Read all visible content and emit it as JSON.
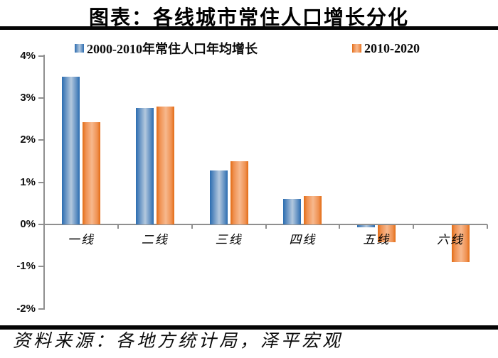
{
  "title": "图表：各线城市常住人口增长分化",
  "source": "资料来源：各地方统计局，泽平宏观",
  "legend": [
    {
      "label": "2000-2010年常住人口年均增长",
      "color": "#2E75B6"
    },
    {
      "label": "2010-2020",
      "color": "#ED7D31"
    }
  ],
  "colors": {
    "blue": "#2E75B6",
    "orange": "#ED7D31",
    "axis": "#8f8f8f",
    "rule": "#050505"
  },
  "chart_data": {
    "type": "bar",
    "title": "图表：各线城市常住人口增长分化",
    "categories": [
      "一线",
      "二线",
      "三线",
      "四线",
      "五线",
      "六线"
    ],
    "series": [
      {
        "name": "2000-2010年常住人口年均增长",
        "color": "#2E75B6",
        "values": [
          3.5,
          2.77,
          1.28,
          0.6,
          -0.05,
          0
        ]
      },
      {
        "name": "2010-2020",
        "color": "#ED7D31",
        "values": [
          2.43,
          2.8,
          1.5,
          0.68,
          -0.41,
          -0.88
        ]
      }
    ],
    "xlabel": "",
    "ylabel": "",
    "ylim": [
      -2,
      4
    ],
    "yticks": [
      {
        "value": 4,
        "label": "4%"
      },
      {
        "value": 3,
        "label": "3%"
      },
      {
        "value": 2,
        "label": "2%"
      },
      {
        "value": 1,
        "label": "1%"
      },
      {
        "value": 0,
        "label": "0%"
      },
      {
        "value": -1,
        "label": "-1%"
      },
      {
        "value": -2,
        "label": "-2%"
      }
    ],
    "grid": false,
    "legend_position": "top"
  }
}
